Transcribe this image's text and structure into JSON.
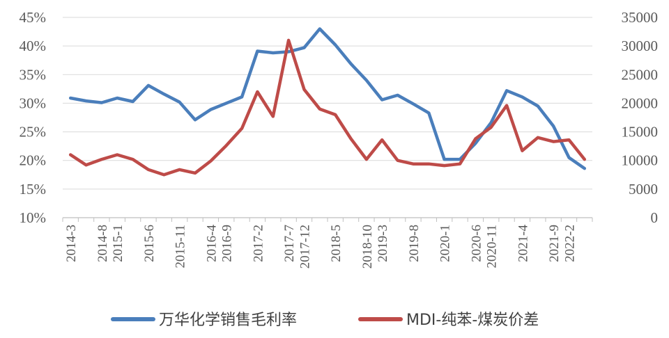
{
  "chart_data": {
    "type": "line",
    "title": "",
    "xlabel": "",
    "ylabel": "",
    "ylim_left": [
      10,
      45
    ],
    "ylim_right": [
      0,
      35000
    ],
    "y_left_ticks": [
      "10%",
      "15%",
      "20%",
      "25%",
      "30%",
      "35%",
      "40%",
      "45%"
    ],
    "y_right_ticks": [
      "0",
      "5000",
      "10000",
      "15000",
      "20000",
      "25000",
      "30000",
      "35000"
    ],
    "x_tick_labels": [
      "2014-3",
      "2014-8",
      "2015-1",
      "2015-6",
      "2015-11",
      "2016-4",
      "2016-9",
      "2017-2",
      "2017-7",
      "2017-12",
      "2018-5",
      "2018-10",
      "2019-3",
      "2019-8",
      "2020-1",
      "2020-6",
      "2020-11",
      "2021-4",
      "2021-9",
      "2022-2"
    ],
    "n_points": 34,
    "grid": "horizontal",
    "legend_position": "bottom",
    "series": [
      {
        "name": "万华化学销售毛利率",
        "axis": "left",
        "color": "#4A7EBB",
        "values": [
          30.9,
          30.4,
          30.1,
          30.9,
          30.3,
          33.1,
          31.6,
          30.2,
          27.1,
          28.9,
          30.0,
          31.1,
          39.1,
          38.8,
          39.0,
          39.7,
          43.0,
          40.2,
          36.9,
          34.0,
          30.6,
          31.4,
          29.9,
          28.3,
          20.2,
          20.2,
          23.0,
          26.6,
          32.2,
          31.1,
          29.5,
          26.0,
          20.5,
          18.6
        ]
      },
      {
        "name": "MDI-纯苯-煤炭价差",
        "axis": "right",
        "color": "#BE4B48",
        "values": [
          11000,
          9200,
          10200,
          11000,
          10200,
          8400,
          7500,
          8400,
          7800,
          9900,
          12600,
          15600,
          22000,
          17700,
          31000,
          22400,
          19000,
          18000,
          13800,
          10200,
          13600,
          10000,
          9400,
          9400,
          9100,
          9400,
          13800,
          15800,
          19600,
          11700,
          14000,
          13300,
          13600,
          10200
        ]
      }
    ]
  }
}
